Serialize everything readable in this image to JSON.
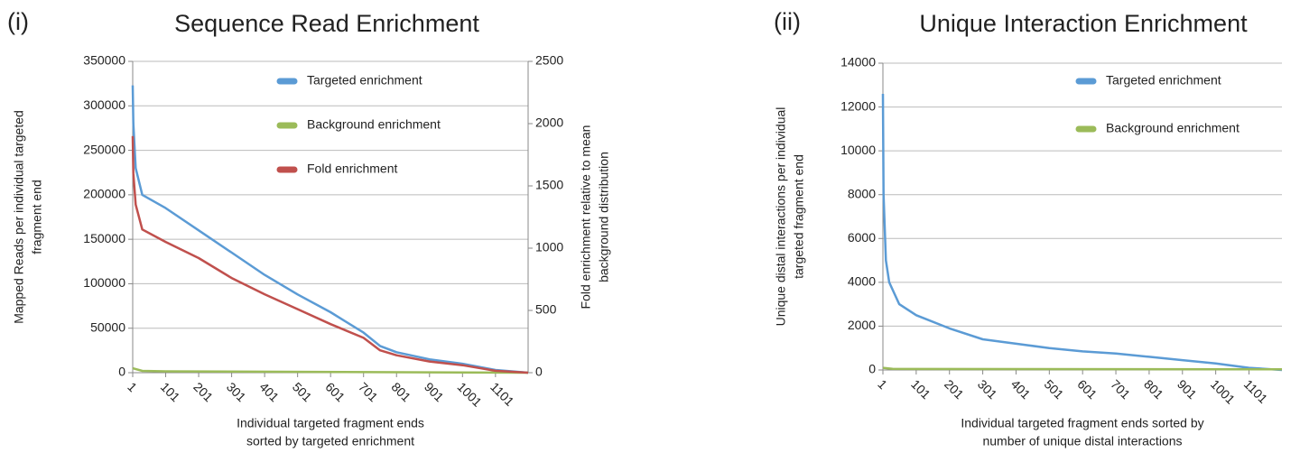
{
  "chart_data": [
    {
      "type": "line",
      "label": "(i)",
      "title": "Sequence Read Enrichment",
      "ylabel": [
        "Mapped Reads per individual targeted",
        "fragment end"
      ],
      "y2label": [
        "Fold enrichment relative to mean",
        "background distribution"
      ],
      "xlabel": [
        "Individual targeted fragment ends",
        "sorted by targeted enrichment"
      ],
      "xlim": [
        1,
        1200
      ],
      "xticks": [
        1,
        101,
        201,
        301,
        401,
        501,
        601,
        701,
        801,
        901,
        1001,
        1101
      ],
      "ylim": [
        0,
        350000
      ],
      "yticks": [
        0,
        50000,
        100000,
        150000,
        200000,
        250000,
        300000,
        350000
      ],
      "y2lim": [
        0,
        2500
      ],
      "y2ticks": [
        0,
        500,
        1000,
        1500,
        2000,
        2500
      ],
      "grid": true,
      "legend": "upper right",
      "series": [
        {
          "name": "Targeted enrichment",
          "color": "#5b9bd5",
          "x": [
            1,
            3,
            10,
            30,
            101,
            201,
            301,
            401,
            501,
            601,
            701,
            751,
            801,
            901,
            1001,
            1101,
            1200
          ],
          "values": [
            323000,
            280000,
            230000,
            200000,
            185000,
            160000,
            135000,
            110000,
            88000,
            68000,
            45000,
            30000,
            23000,
            15000,
            10000,
            3000,
            0
          ]
        },
        {
          "name": "Background enrichment",
          "color": "#9bbb59",
          "x": [
            1,
            30,
            101,
            1200
          ],
          "values": [
            5000,
            2000,
            1500,
            0
          ]
        },
        {
          "name": "Fold enrichment",
          "color": "#c0504d",
          "axis": "y2",
          "x": [
            1,
            3,
            10,
            30,
            101,
            201,
            301,
            401,
            501,
            601,
            701,
            751,
            801,
            901,
            1001,
            1101,
            1200
          ],
          "values": [
            1900,
            1600,
            1350,
            1150,
            1050,
            920,
            760,
            630,
            510,
            390,
            280,
            180,
            140,
            90,
            60,
            15,
            0
          ]
        }
      ]
    },
    {
      "type": "line",
      "label": "(ii)",
      "title": "Unique Interaction Enrichment",
      "ylabel": [
        "Unique distal interactions per individual",
        "targeted fragment end"
      ],
      "xlabel": [
        "Individual targeted fragment ends sorted by",
        "number of unique distal interactions"
      ],
      "xlim": [
        1,
        1200
      ],
      "xticks": [
        1,
        101,
        201,
        301,
        401,
        501,
        601,
        701,
        801,
        901,
        1001,
        1101
      ],
      "ylim": [
        0,
        14000
      ],
      "yticks": [
        0,
        2000,
        4000,
        6000,
        8000,
        10000,
        12000,
        14000
      ],
      "grid": true,
      "legend": "upper right",
      "series": [
        {
          "name": "Targeted enrichment",
          "color": "#5b9bd5",
          "x": [
            1,
            3,
            10,
            20,
            50,
            101,
            201,
            301,
            401,
            501,
            601,
            701,
            801,
            901,
            1001,
            1101,
            1200
          ],
          "values": [
            12600,
            8000,
            5000,
            4000,
            3000,
            2500,
            1900,
            1400,
            1200,
            1000,
            850,
            750,
            600,
            450,
            300,
            100,
            0
          ]
        },
        {
          "name": "Background enrichment",
          "color": "#9bbb59",
          "x": [
            1,
            30,
            1200
          ],
          "values": [
            100,
            50,
            30
          ]
        }
      ]
    }
  ]
}
